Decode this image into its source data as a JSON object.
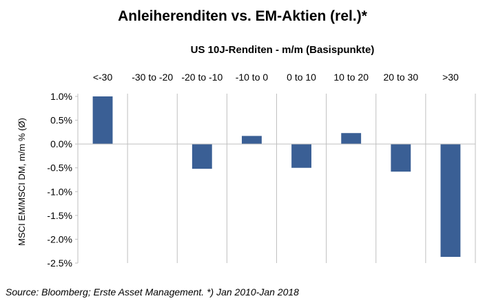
{
  "chart_data": {
    "type": "bar",
    "title": "Anleiherenditen  vs. EM-Aktien  (rel.)*",
    "subtitle": "US 10J-Renditen - m/m (Basispunkte)",
    "xlabel": "US 10J-Renditen - m/m (Basispunkte)",
    "ylabel": "MSCI EM/MSCI DM, m/m % (Ø)",
    "categories": [
      "<-30",
      "-30 to -20",
      "-20 to -10",
      "-10 to 0",
      "0 to 10",
      "10 to 20",
      "20 to 30",
      ">30"
    ],
    "values": [
      0.01,
      0.0,
      -0.0052,
      0.0017,
      -0.005,
      0.0023,
      -0.0058,
      -0.0237
    ],
    "ylim": [
      -0.025,
      0.01
    ],
    "yticks": [
      0.01,
      0.005,
      0.0,
      -0.005,
      -0.01,
      -0.015,
      -0.02,
      -0.025
    ],
    "ytick_labels": [
      "1.0%",
      "0.5%",
      "0.0%",
      "-0.5%",
      "-1.0%",
      "-1.5%",
      "-2.0%",
      "-2.5%"
    ],
    "grid": "vertical separators",
    "bar_color": "#3a5f95",
    "axis_position": "x-labels-top"
  },
  "source": "Source: Bloomberg; Erste Asset Management. *) Jan 2010-Jan 2018"
}
